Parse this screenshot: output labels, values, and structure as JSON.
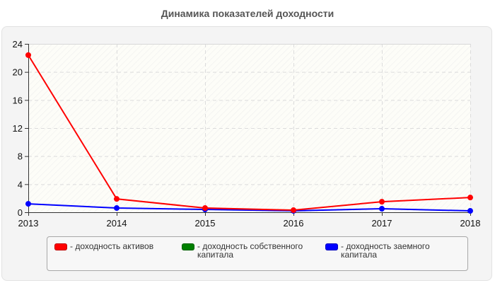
{
  "header": {
    "title": "Динамика показателей доходности"
  },
  "legend": {
    "items": [
      {
        "label": "- доходность активов",
        "color": "#ff0000"
      },
      {
        "label": "- доходность собственного капитала",
        "color": "#008000"
      },
      {
        "label": "- доходность заемного капитала",
        "color": "#0000ff"
      }
    ]
  },
  "chart_data": {
    "type": "line",
    "title": "Динамика показателей доходности",
    "xlabel": "",
    "ylabel": "",
    "categories": [
      "2013",
      "2014",
      "2015",
      "2016",
      "2017",
      "2018"
    ],
    "series": [
      {
        "name": "доходность активов",
        "color": "#ff0000",
        "values": [
          22.4,
          1.9,
          0.6,
          0.3,
          1.5,
          2.1
        ]
      },
      {
        "name": "доходность собственного капитала",
        "color": "#008000",
        "values": []
      },
      {
        "name": "доходность заемного капитала",
        "color": "#0000ff",
        "values": [
          1.2,
          0.6,
          0.4,
          0.2,
          0.5,
          0.2
        ]
      }
    ],
    "ylim": [
      0,
      24
    ],
    "yticks": [
      0,
      4,
      8,
      12,
      16,
      20,
      24
    ],
    "grid": true,
    "legend_position": "bottom"
  }
}
